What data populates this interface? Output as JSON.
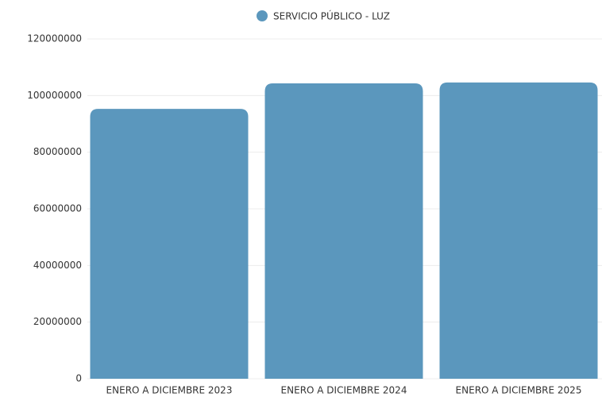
{
  "chart_data": {
    "type": "bar",
    "categories": [
      "ENERO A DICIEMBRE 2023",
      "ENERO A DICIEMBRE 2024",
      "ENERO A DICIEMBRE 2025"
    ],
    "series": [
      {
        "name": "SERVICIO PÚBLICO - LUZ",
        "color": "#5b97bd",
        "values": [
          95300000,
          104300000,
          104600000
        ]
      }
    ],
    "ylim": [
      0,
      120000000
    ],
    "yticks": [
      0,
      20000000,
      40000000,
      60000000,
      80000000,
      100000000,
      120000000
    ],
    "grid": true,
    "legend": "top"
  }
}
